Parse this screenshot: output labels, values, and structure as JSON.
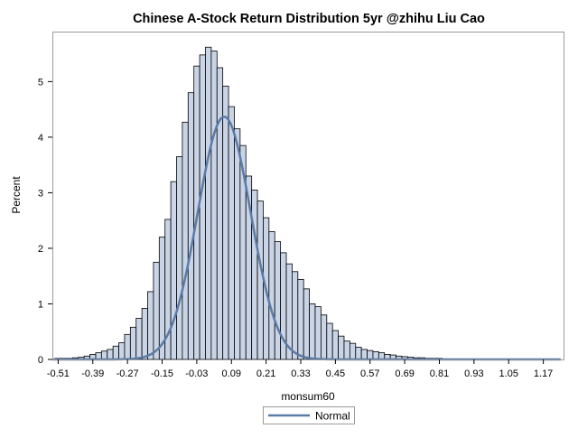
{
  "chart_data": {
    "type": "bar",
    "title": "Chinese A-Stock Return Distribution 5yr @zhihu Liu Cao",
    "xlabel": "monsum60",
    "ylabel": "Percent",
    "xlim": [
      -0.53,
      1.24
    ],
    "ylim": [
      0,
      5.9
    ],
    "bin_width": 0.02,
    "x_ticks": [
      -0.51,
      -0.39,
      -0.27,
      -0.15,
      -0.03,
      0.09,
      0.21,
      0.33,
      0.45,
      0.57,
      0.69,
      0.81,
      0.93,
      1.05,
      1.17
    ],
    "x_tick_labels": [
      "-0.51",
      "-0.39",
      "-0.27",
      "-0.15",
      "-0.03",
      "0.09",
      "0.21",
      "0.33",
      "0.45",
      "0.57",
      "0.69",
      "0.81",
      "0.93",
      "1.05",
      "1.17"
    ],
    "y_ticks": [
      0,
      1,
      2,
      3,
      4,
      5
    ],
    "y_tick_labels": [
      "0",
      "1",
      "2",
      "3",
      "4",
      "5"
    ],
    "bin_centers": [
      -0.51,
      -0.49,
      -0.47,
      -0.45,
      -0.43,
      -0.41,
      -0.39,
      -0.37,
      -0.35,
      -0.33,
      -0.31,
      -0.29,
      -0.27,
      -0.25,
      -0.23,
      -0.21,
      -0.19,
      -0.17,
      -0.15,
      -0.13,
      -0.11,
      -0.09,
      -0.07,
      -0.05,
      -0.03,
      -0.01,
      0.01,
      0.03,
      0.05,
      0.07,
      0.09,
      0.11,
      0.13,
      0.15,
      0.17,
      0.19,
      0.21,
      0.23,
      0.25,
      0.27,
      0.29,
      0.31,
      0.33,
      0.35,
      0.37,
      0.39,
      0.41,
      0.43,
      0.45,
      0.47,
      0.49,
      0.51,
      0.53,
      0.55,
      0.57,
      0.59,
      0.61,
      0.63,
      0.65,
      0.67,
      0.69,
      0.71,
      0.73,
      0.75,
      0.77,
      0.79,
      0.81,
      0.83,
      0.85,
      0.87,
      0.89
    ],
    "values": [
      0.02,
      0.02,
      0.02,
      0.03,
      0.04,
      0.06,
      0.09,
      0.12,
      0.15,
      0.18,
      0.24,
      0.3,
      0.45,
      0.58,
      0.74,
      0.92,
      1.22,
      1.75,
      2.2,
      2.52,
      3.2,
      3.65,
      4.27,
      4.8,
      5.28,
      5.48,
      5.62,
      5.55,
      5.25,
      4.92,
      4.55,
      4.15,
      3.85,
      3.3,
      3.05,
      2.85,
      2.55,
      2.3,
      2.12,
      1.92,
      1.72,
      1.58,
      1.44,
      1.27,
      1.0,
      0.95,
      0.8,
      0.65,
      0.52,
      0.42,
      0.33,
      0.29,
      0.22,
      0.18,
      0.16,
      0.14,
      0.12,
      0.09,
      0.08,
      0.06,
      0.05,
      0.04,
      0.03,
      0.03,
      0.02,
      0.02,
      0.02,
      0.01,
      0.01,
      0.01,
      0.01
    ],
    "series": [
      {
        "name": "Normal",
        "type": "line",
        "color": "#5b7ba7",
        "mean": 0.065,
        "std": 0.0915,
        "peak_percent": 4.37,
        "x_range": [
          -0.53,
          1.23
        ]
      }
    ],
    "bar_fill": "#c9d5e6",
    "bar_stroke": "#000000",
    "legend": {
      "position": "bottom-center",
      "entries": [
        "Normal"
      ]
    },
    "grid": false
  }
}
